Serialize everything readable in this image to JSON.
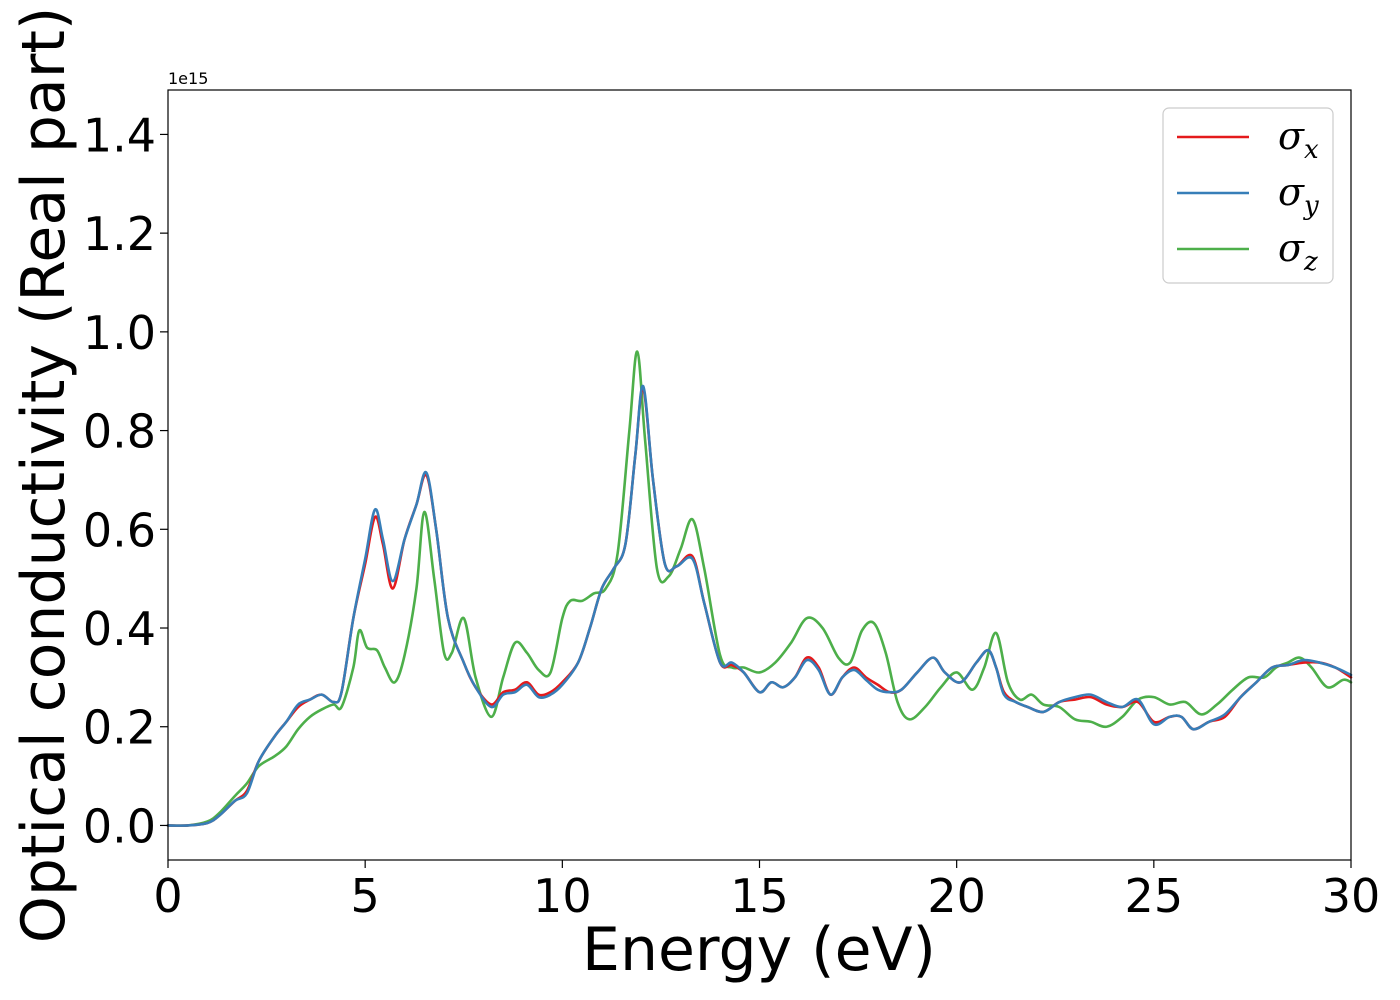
{
  "chart_data": {
    "type": "line",
    "xlabel": "Energy (eV)",
    "ylabel": "Optical conductivity (Real part)",
    "y_offset_label": "1e15",
    "xlim": [
      0,
      30
    ],
    "ylim": [
      -0.07,
      1.49
    ],
    "xticks": [
      0,
      5,
      10,
      15,
      20,
      25,
      30
    ],
    "xtick_labels": [
      "0",
      "5",
      "10",
      "15",
      "20",
      "25",
      "30"
    ],
    "yticks": [
      0.0,
      0.2,
      0.4,
      0.6,
      0.8,
      1.0,
      1.2,
      1.4
    ],
    "ytick_labels": [
      "0.0",
      "0.2",
      "0.4",
      "0.6",
      "0.8",
      "1.0",
      "1.2",
      "1.4"
    ],
    "grid": false,
    "legend_position": "top-right",
    "series": [
      {
        "name": "σ",
        "subscript": "x",
        "color": "#e41a1c",
        "x": [
          0,
          0.5,
          1.0,
          1.3,
          1.7,
          2.0,
          2.3,
          2.7,
          3.0,
          3.3,
          3.6,
          3.9,
          4.2,
          4.4,
          4.7,
          5.0,
          5.25,
          5.45,
          5.7,
          6.0,
          6.3,
          6.55,
          6.8,
          7.1,
          7.5,
          7.8,
          8.2,
          8.5,
          8.8,
          9.1,
          9.4,
          9.7,
          10.0,
          10.4,
          10.7,
          11.0,
          11.3,
          11.6,
          11.85,
          12.05,
          12.3,
          12.6,
          12.9,
          13.3,
          13.6,
          14.0,
          14.3,
          14.6,
          15.0,
          15.3,
          15.6,
          15.9,
          16.2,
          16.5,
          16.8,
          17.1,
          17.4,
          17.7,
          18.0,
          18.3,
          18.6,
          19.0,
          19.4,
          19.7,
          20.1,
          20.5,
          20.8,
          21.0,
          21.2,
          21.5,
          21.8,
          22.2,
          22.6,
          23.0,
          23.4,
          23.8,
          24.2,
          24.6,
          25.0,
          25.4,
          25.7,
          26.0,
          26.4,
          26.8,
          27.2,
          27.6,
          28.0,
          28.4,
          28.8,
          29.2,
          29.6,
          30.0
        ],
        "y": [
          0.0,
          0.0,
          0.005,
          0.02,
          0.05,
          0.07,
          0.13,
          0.18,
          0.21,
          0.24,
          0.255,
          0.265,
          0.25,
          0.27,
          0.42,
          0.53,
          0.625,
          0.57,
          0.48,
          0.58,
          0.65,
          0.71,
          0.6,
          0.42,
          0.33,
          0.28,
          0.245,
          0.27,
          0.275,
          0.29,
          0.265,
          0.27,
          0.29,
          0.33,
          0.4,
          0.48,
          0.52,
          0.57,
          0.75,
          0.885,
          0.7,
          0.53,
          0.525,
          0.545,
          0.45,
          0.33,
          0.325,
          0.31,
          0.27,
          0.29,
          0.28,
          0.3,
          0.34,
          0.32,
          0.265,
          0.3,
          0.32,
          0.3,
          0.285,
          0.27,
          0.275,
          0.31,
          0.34,
          0.31,
          0.29,
          0.33,
          0.355,
          0.32,
          0.27,
          0.25,
          0.24,
          0.23,
          0.25,
          0.255,
          0.26,
          0.245,
          0.24,
          0.25,
          0.21,
          0.22,
          0.22,
          0.195,
          0.21,
          0.22,
          0.26,
          0.29,
          0.32,
          0.325,
          0.33,
          0.33,
          0.32,
          0.3
        ]
      },
      {
        "name": "σ",
        "subscript": "y",
        "color": "#377eb8",
        "x": [
          0,
          0.5,
          1.0,
          1.3,
          1.7,
          2.0,
          2.3,
          2.7,
          3.0,
          3.3,
          3.6,
          3.9,
          4.2,
          4.4,
          4.7,
          5.0,
          5.25,
          5.45,
          5.7,
          6.0,
          6.3,
          6.55,
          6.8,
          7.1,
          7.5,
          7.8,
          8.2,
          8.5,
          8.8,
          9.1,
          9.4,
          9.7,
          10.0,
          10.4,
          10.7,
          11.0,
          11.3,
          11.6,
          11.85,
          12.05,
          12.3,
          12.6,
          12.9,
          13.3,
          13.6,
          14.0,
          14.3,
          14.6,
          15.0,
          15.3,
          15.6,
          15.9,
          16.2,
          16.5,
          16.8,
          17.1,
          17.4,
          17.7,
          18.0,
          18.3,
          18.6,
          19.0,
          19.4,
          19.7,
          20.1,
          20.5,
          20.8,
          21.0,
          21.2,
          21.5,
          21.8,
          22.2,
          22.6,
          23.0,
          23.4,
          23.8,
          24.2,
          24.6,
          25.0,
          25.4,
          25.7,
          26.0,
          26.4,
          26.8,
          27.2,
          27.6,
          28.0,
          28.4,
          28.8,
          29.2,
          29.6,
          30.0
        ],
        "y": [
          0.0,
          0.0,
          0.005,
          0.02,
          0.05,
          0.065,
          0.13,
          0.18,
          0.21,
          0.245,
          0.255,
          0.265,
          0.25,
          0.27,
          0.42,
          0.54,
          0.64,
          0.58,
          0.495,
          0.58,
          0.65,
          0.715,
          0.6,
          0.42,
          0.33,
          0.28,
          0.24,
          0.265,
          0.27,
          0.285,
          0.26,
          0.265,
          0.285,
          0.33,
          0.4,
          0.48,
          0.52,
          0.57,
          0.75,
          0.89,
          0.7,
          0.53,
          0.525,
          0.54,
          0.45,
          0.33,
          0.33,
          0.31,
          0.27,
          0.29,
          0.28,
          0.3,
          0.335,
          0.315,
          0.265,
          0.3,
          0.315,
          0.295,
          0.275,
          0.27,
          0.275,
          0.31,
          0.34,
          0.31,
          0.29,
          0.33,
          0.355,
          0.32,
          0.265,
          0.25,
          0.24,
          0.23,
          0.25,
          0.26,
          0.265,
          0.25,
          0.24,
          0.255,
          0.205,
          0.22,
          0.22,
          0.195,
          0.21,
          0.225,
          0.26,
          0.29,
          0.32,
          0.325,
          0.335,
          0.33,
          0.32,
          0.305
        ]
      },
      {
        "name": "σ",
        "subscript": "z",
        "color": "#4daf4a",
        "x": [
          0,
          0.5,
          1.0,
          1.3,
          1.7,
          2.0,
          2.3,
          2.7,
          3.0,
          3.3,
          3.6,
          3.9,
          4.2,
          4.4,
          4.7,
          4.85,
          5.05,
          5.3,
          5.5,
          5.75,
          6.0,
          6.3,
          6.5,
          6.75,
          7.0,
          7.2,
          7.5,
          7.8,
          8.2,
          8.5,
          8.8,
          9.1,
          9.4,
          9.7,
          10.0,
          10.2,
          10.5,
          10.8,
          11.1,
          11.4,
          11.7,
          11.9,
          12.1,
          12.4,
          12.7,
          13.0,
          13.3,
          13.6,
          14.0,
          14.3,
          14.6,
          15.0,
          15.4,
          15.8,
          16.2,
          16.6,
          17.0,
          17.3,
          17.6,
          17.9,
          18.2,
          18.5,
          18.8,
          19.2,
          19.6,
          20.0,
          20.4,
          20.7,
          21.0,
          21.3,
          21.6,
          21.9,
          22.2,
          22.6,
          23.0,
          23.4,
          23.8,
          24.2,
          24.6,
          25.0,
          25.4,
          25.8,
          26.2,
          26.6,
          27.0,
          27.4,
          27.8,
          28.1,
          28.4,
          28.7,
          29.0,
          29.4,
          29.8,
          30.0
        ],
        "y": [
          0.0,
          0.0,
          0.008,
          0.025,
          0.06,
          0.085,
          0.12,
          0.14,
          0.16,
          0.195,
          0.22,
          0.235,
          0.245,
          0.24,
          0.32,
          0.395,
          0.36,
          0.355,
          0.32,
          0.29,
          0.345,
          0.48,
          0.635,
          0.5,
          0.35,
          0.35,
          0.42,
          0.3,
          0.22,
          0.3,
          0.37,
          0.35,
          0.315,
          0.31,
          0.42,
          0.455,
          0.455,
          0.47,
          0.48,
          0.55,
          0.8,
          0.96,
          0.78,
          0.52,
          0.505,
          0.56,
          0.62,
          0.52,
          0.345,
          0.32,
          0.32,
          0.31,
          0.33,
          0.37,
          0.42,
          0.4,
          0.34,
          0.33,
          0.395,
          0.41,
          0.35,
          0.25,
          0.215,
          0.24,
          0.28,
          0.31,
          0.275,
          0.32,
          0.39,
          0.29,
          0.255,
          0.265,
          0.245,
          0.24,
          0.215,
          0.21,
          0.2,
          0.22,
          0.255,
          0.26,
          0.245,
          0.25,
          0.225,
          0.245,
          0.275,
          0.3,
          0.3,
          0.32,
          0.33,
          0.34,
          0.32,
          0.28,
          0.295,
          0.29
        ]
      }
    ]
  }
}
